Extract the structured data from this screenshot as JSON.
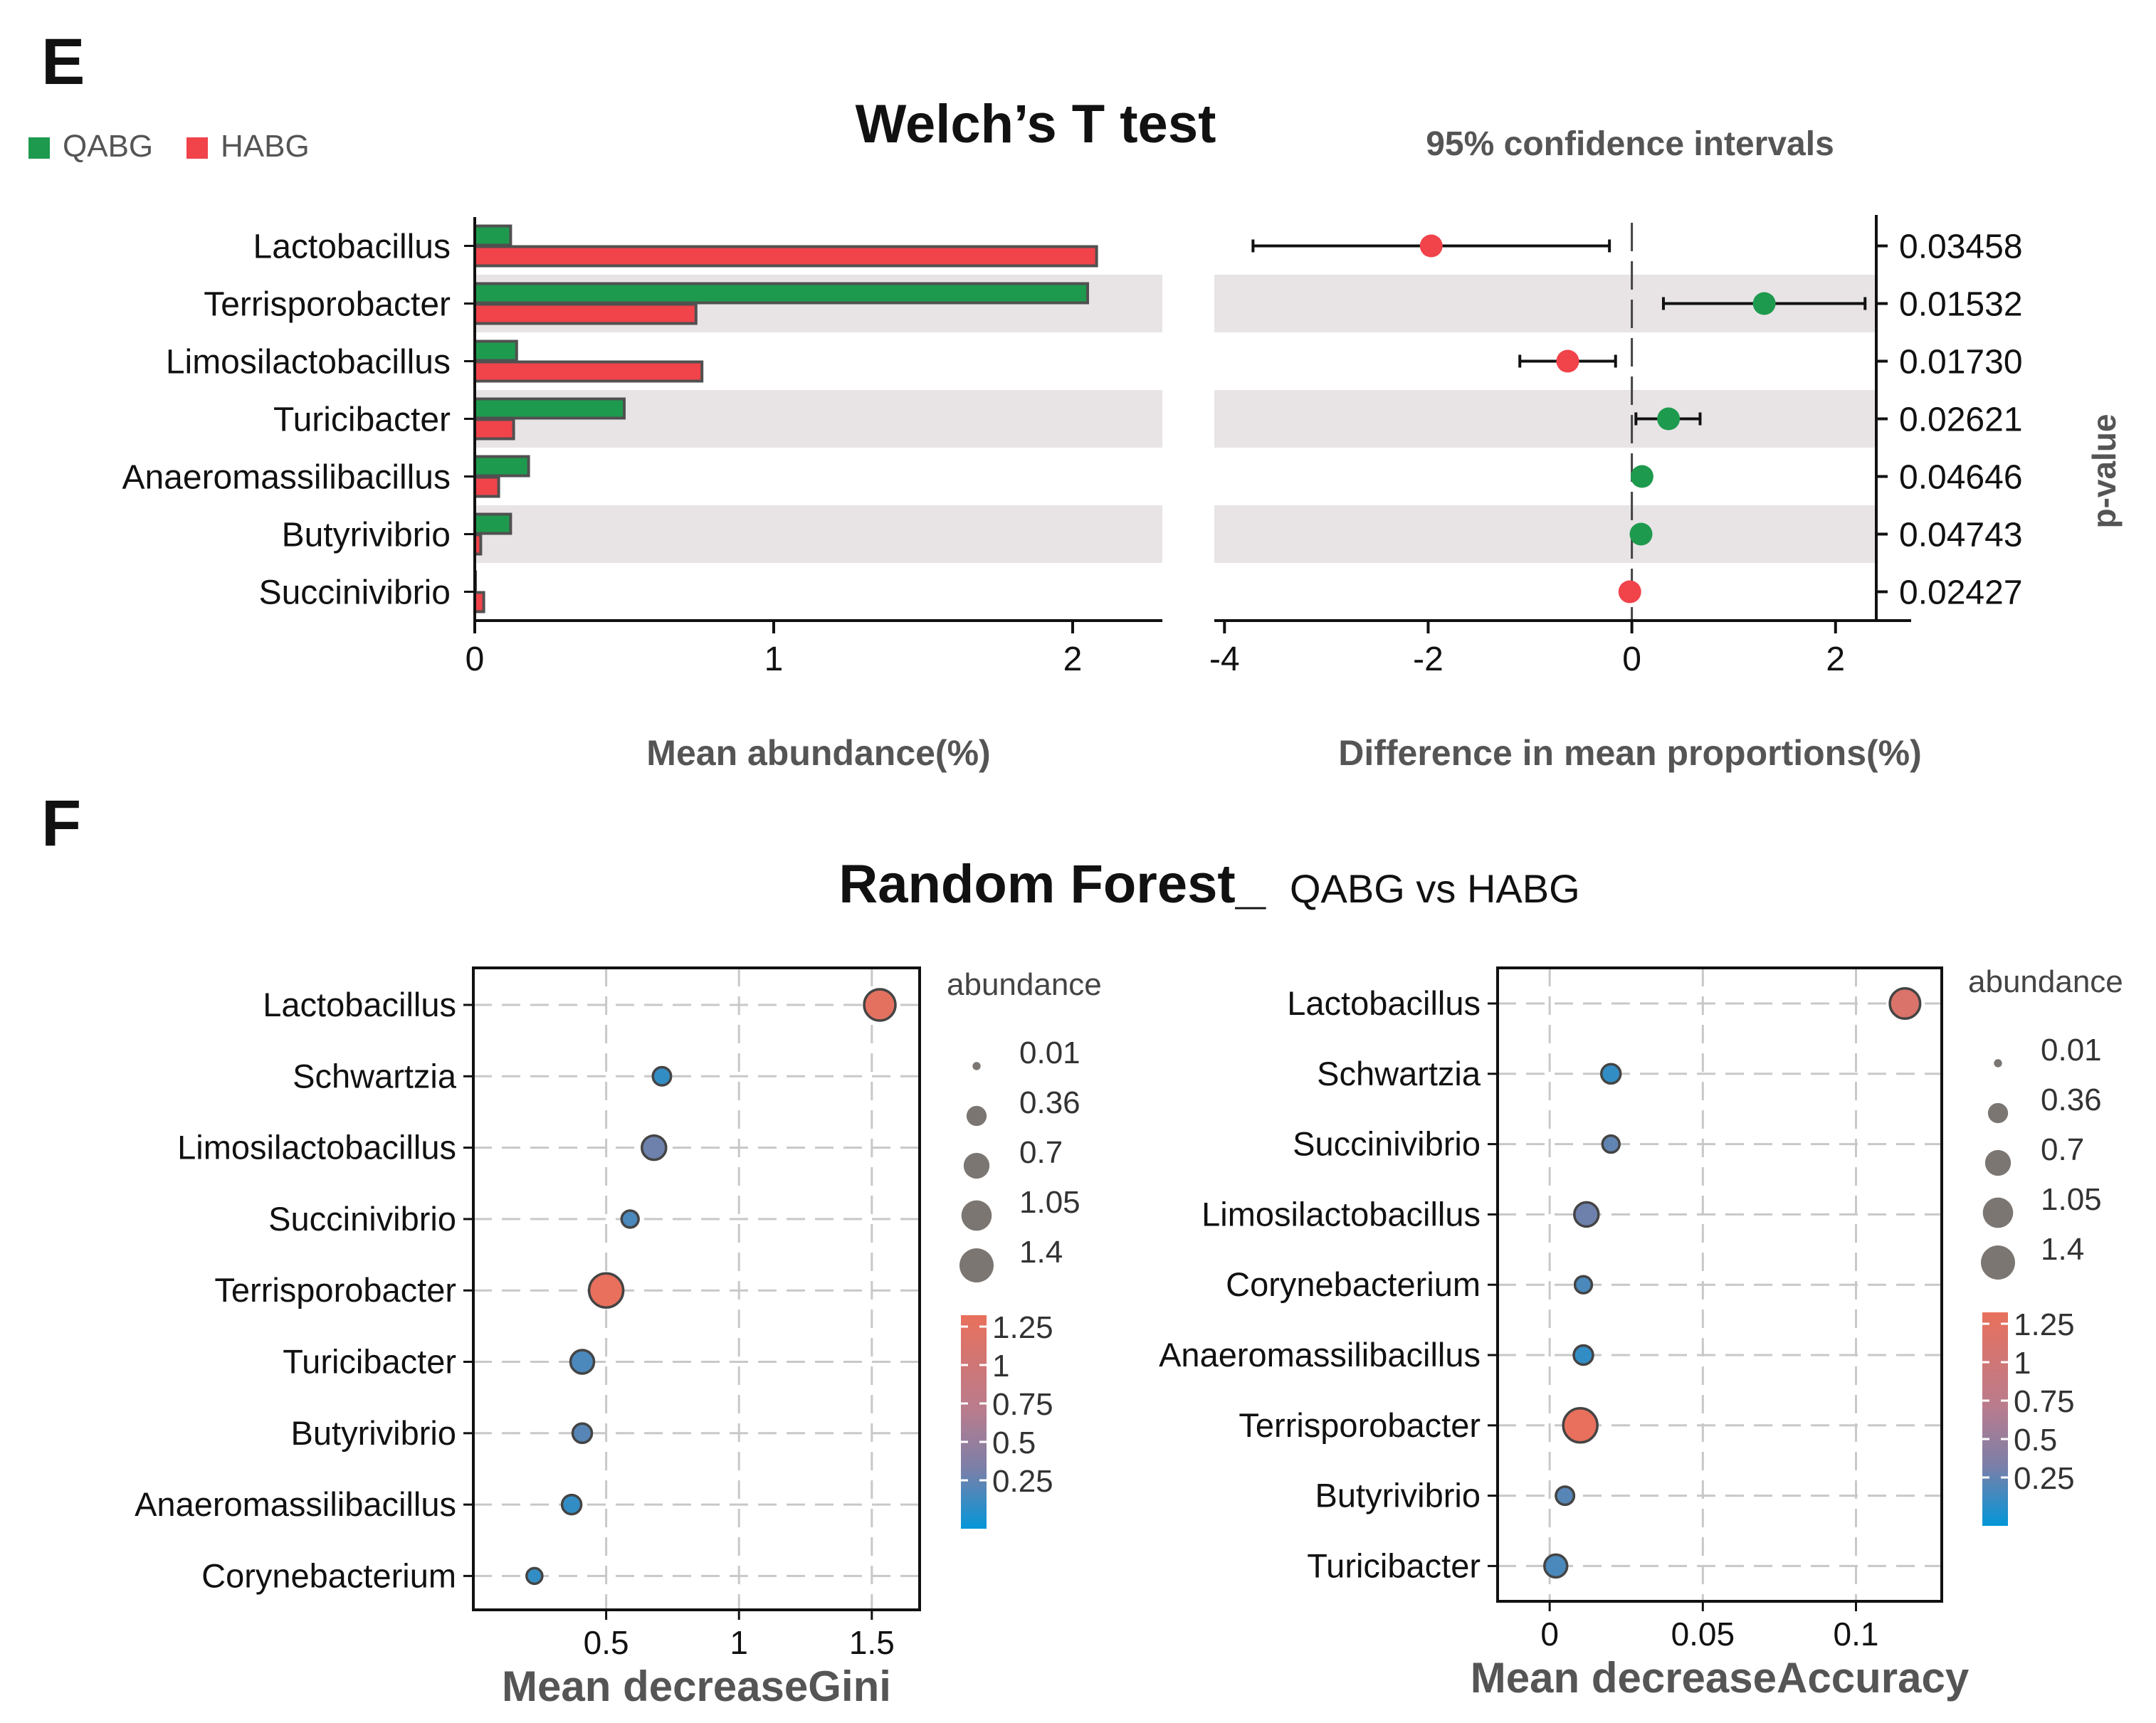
{
  "panel_e": {
    "letter": "E",
    "title": "Welch’s T test",
    "legend": [
      {
        "label": "QABG",
        "color": "#1e9a4e"
      },
      {
        "label": "HABG",
        "color": "#f0434a"
      }
    ],
    "ci_title": "95% confidence intervals",
    "xlabel_left": "Mean abundance(%)",
    "xlabel_right": "Difference in mean proportions(%)",
    "pvalue_label": "p-value"
  },
  "panel_f": {
    "letter": "F",
    "title_main": "Random Forest_",
    "title_sub": "QABG vs HABG"
  },
  "chart_data": [
    {
      "type": "bar",
      "name": "welch-mean-abundance",
      "orientation": "horizontal",
      "categories": [
        "Lactobacillus",
        "Terrisporobacter",
        "Limosilactobacillus",
        "Turicibacter",
        "Anaeromassilibacillus",
        "Butyrivibrio",
        "Succinivibrio"
      ],
      "series": [
        {
          "name": "QABG",
          "color": "#1e9a4e",
          "values": [
            0.12,
            2.05,
            0.14,
            0.5,
            0.18,
            0.12,
            0.0
          ]
        },
        {
          "name": "HABG",
          "color": "#f0434a",
          "values": [
            2.08,
            0.74,
            0.76,
            0.13,
            0.08,
            0.02,
            0.03
          ]
        }
      ],
      "xlabel": "Mean abundance(%)",
      "xlim": [
        0,
        2.3
      ],
      "xticks": [
        "0",
        "1",
        "2"
      ]
    },
    {
      "type": "scatter",
      "name": "welch-confidence-intervals",
      "title": "95% confidence intervals",
      "categories": [
        "Lactobacillus",
        "Terrisporobacter",
        "Limosilactobacillus",
        "Turicibacter",
        "Anaeromassilibacillus",
        "Butyrivibrio",
        "Succinivibrio"
      ],
      "estimate": [
        -1.97,
        1.3,
        -0.63,
        0.36,
        0.1,
        0.09,
        -0.02
      ],
      "ci_low": [
        -3.72,
        0.31,
        -1.1,
        0.04,
        0.04,
        0.03,
        -0.05
      ],
      "ci_high": [
        -0.22,
        2.29,
        -0.16,
        0.67,
        0.16,
        0.15,
        0.01
      ],
      "group_color": [
        "HABG",
        "QABG",
        "HABG",
        "QABG",
        "QABG",
        "QABG",
        "HABG"
      ],
      "p_values": [
        "0.03458",
        "0.01532",
        "0.01730",
        "0.02621",
        "0.04646",
        "0.04743",
        "0.02427"
      ],
      "xlabel": "Difference in mean proportions(%)",
      "ylabel_right": "p-value",
      "xlim": [
        -4.1,
        2.4
      ],
      "xticks": [
        "-4",
        "-2",
        "0",
        "2"
      ]
    },
    {
      "type": "scatter",
      "name": "rf-mean-decrease-gini",
      "categories": [
        "Lactobacillus",
        "Schwartzia",
        "Limosilactobacillus",
        "Succinivibrio",
        "Terrisporobacter",
        "Turicibacter",
        "Butyrivibrio",
        "Anaeromassilibacillus",
        "Corynebacterium"
      ],
      "x": [
        1.53,
        0.71,
        0.68,
        0.59,
        0.5,
        0.41,
        0.41,
        0.37,
        0.23
      ],
      "size": [
        1.2,
        0.25,
        0.6,
        0.2,
        1.5,
        0.55,
        0.3,
        0.3,
        0.15
      ],
      "abundance": [
        1.22,
        0.2,
        0.45,
        0.3,
        1.25,
        0.3,
        0.35,
        0.2,
        0.2
      ],
      "xlabel": "Mean decreaseGini",
      "xlim": [
        0,
        1.68
      ],
      "xticks": [
        "0.5",
        "1",
        "1.5"
      ],
      "grid": true,
      "size_legend": {
        "title": "abundance",
        "values": [
          "0.01",
          "0.36",
          "0.7",
          "1.05",
          "1.4"
        ]
      },
      "color_legend": {
        "values": [
          "1.25",
          "1",
          "0.75",
          "0.5",
          "0.25"
        ]
      }
    },
    {
      "type": "scatter",
      "name": "rf-mean-decrease-accuracy",
      "categories": [
        "Lactobacillus",
        "Schwartzia",
        "Succinivibrio",
        "Limosilactobacillus",
        "Corynebacterium",
        "Anaeromassilibacillus",
        "Terrisporobacter",
        "Butyrivibrio",
        "Turicibacter"
      ],
      "x": [
        0.116,
        0.02,
        0.02,
        0.012,
        0.011,
        0.011,
        0.01,
        0.005,
        0.002
      ],
      "size": [
        1.1,
        0.3,
        0.2,
        0.6,
        0.2,
        0.3,
        1.5,
        0.25,
        0.5
      ],
      "abundance": [
        1.15,
        0.2,
        0.4,
        0.45,
        0.3,
        0.2,
        1.25,
        0.35,
        0.3
      ],
      "xlabel": "Mean decreaseAccuracy",
      "xlim": [
        -0.017,
        0.128
      ],
      "xticks": [
        "0",
        "0.05",
        "0.1"
      ],
      "grid": true,
      "size_legend": {
        "title": "abundance",
        "values": [
          "0.01",
          "0.36",
          "0.7",
          "1.05",
          "1.4"
        ]
      },
      "color_legend": {
        "values": [
          "1.25",
          "1",
          "0.75",
          "0.5",
          "0.25"
        ]
      }
    }
  ]
}
